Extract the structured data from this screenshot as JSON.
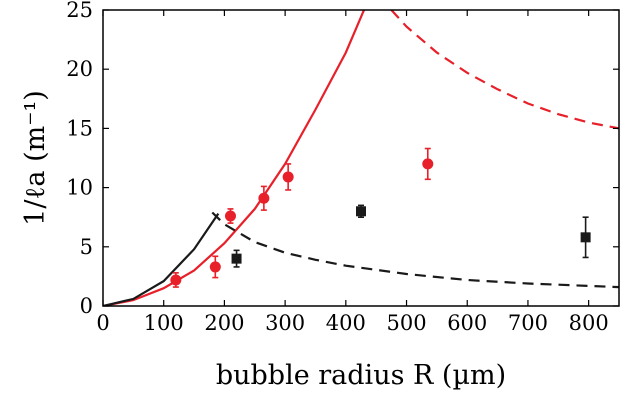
{
  "chart_data": {
    "type": "scatter",
    "xlabel": "bubble radius R (µm)",
    "ylabel": "1/ℓa (m⁻¹)",
    "xlim": [
      0,
      850
    ],
    "ylim": [
      0,
      25
    ],
    "xticks": [
      0,
      100,
      200,
      300,
      400,
      500,
      600,
      700,
      800
    ],
    "yticks": [
      0,
      5,
      10,
      15,
      20,
      25
    ],
    "xtick_labels": [
      "0",
      "100",
      "200",
      "300",
      "400",
      "500",
      "600",
      "700",
      "800"
    ],
    "ytick_labels": [
      "0",
      "5",
      "10",
      "15",
      "20",
      "25"
    ],
    "grid": false,
    "legend": "none",
    "series": [
      {
        "kind": "points",
        "marker": "circle",
        "color": "#e8202a",
        "points": [
          {
            "x": 120,
            "y": 2.2,
            "err": 0.6
          },
          {
            "x": 185,
            "y": 3.3,
            "err": 0.9
          },
          {
            "x": 210,
            "y": 7.6,
            "err": 0.6
          },
          {
            "x": 265,
            "y": 9.1,
            "err": 1.0
          },
          {
            "x": 305,
            "y": 10.9,
            "err": 1.1
          },
          {
            "x": 535,
            "y": 12.0,
            "err": 1.3
          }
        ]
      },
      {
        "kind": "points",
        "marker": "square",
        "color": "#1a1a1a",
        "points": [
          {
            "x": 220,
            "y": 4.0,
            "err": 0.7
          },
          {
            "x": 425,
            "y": 8.0,
            "err": 0.5
          },
          {
            "x": 795,
            "y": 5.8,
            "err": 1.7
          }
        ]
      },
      {
        "kind": "curve",
        "style": "solid",
        "color": "#e8202a",
        "points": [
          {
            "x": 0,
            "y": 0
          },
          {
            "x": 50,
            "y": 0.5
          },
          {
            "x": 100,
            "y": 1.5
          },
          {
            "x": 150,
            "y": 3.0
          },
          {
            "x": 200,
            "y": 5.3
          },
          {
            "x": 250,
            "y": 8.2
          },
          {
            "x": 300,
            "y": 12.0
          },
          {
            "x": 350,
            "y": 16.6
          },
          {
            "x": 400,
            "y": 21.4
          },
          {
            "x": 430,
            "y": 25.0
          }
        ]
      },
      {
        "kind": "curve",
        "style": "dashed",
        "color": "#e8202a",
        "points": [
          {
            "x": 475,
            "y": 25.0
          },
          {
            "x": 500,
            "y": 23.6
          },
          {
            "x": 550,
            "y": 21.4
          },
          {
            "x": 600,
            "y": 19.7
          },
          {
            "x": 650,
            "y": 18.3
          },
          {
            "x": 700,
            "y": 17.1
          },
          {
            "x": 750,
            "y": 16.2
          },
          {
            "x": 800,
            "y": 15.5
          },
          {
            "x": 850,
            "y": 15.0
          }
        ]
      },
      {
        "kind": "curve",
        "style": "solid",
        "color": "#1a1a1a",
        "points": [
          {
            "x": 0,
            "y": 0
          },
          {
            "x": 50,
            "y": 0.6
          },
          {
            "x": 100,
            "y": 2.1
          },
          {
            "x": 150,
            "y": 4.8
          },
          {
            "x": 190,
            "y": 7.8
          }
        ]
      },
      {
        "kind": "curve",
        "style": "dashed",
        "color": "#1a1a1a",
        "points": [
          {
            "x": 180,
            "y": 7.9
          },
          {
            "x": 200,
            "y": 6.9
          },
          {
            "x": 250,
            "y": 5.4
          },
          {
            "x": 300,
            "y": 4.5
          },
          {
            "x": 350,
            "y": 3.9
          },
          {
            "x": 400,
            "y": 3.4
          },
          {
            "x": 500,
            "y": 2.7
          },
          {
            "x": 600,
            "y": 2.2
          },
          {
            "x": 700,
            "y": 1.9
          },
          {
            "x": 850,
            "y": 1.6
          }
        ]
      }
    ]
  }
}
